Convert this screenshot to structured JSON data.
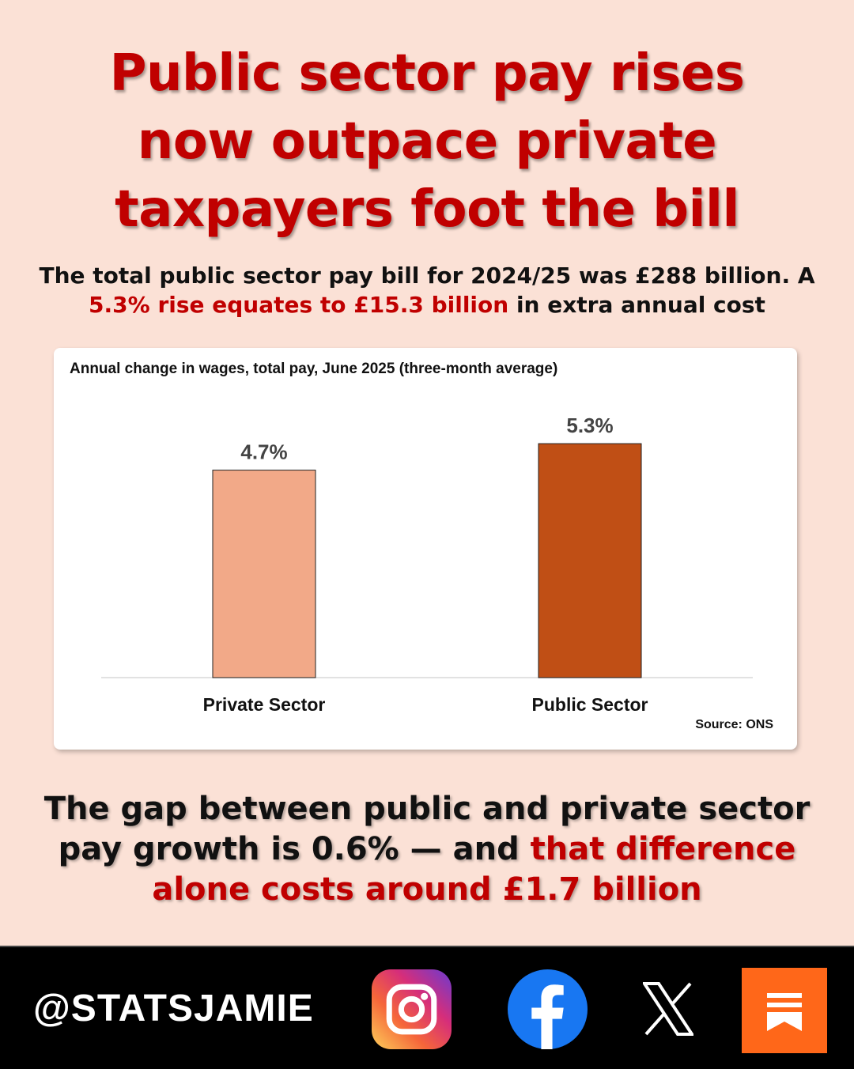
{
  "headline": {
    "line1": "Public sector pay rises",
    "line2": "now outpace private",
    "line3": "taxpayers foot the bill"
  },
  "subline": {
    "part1": "The total public sector pay bill for 2024/25 was £288 billion. A",
    "part2_red": "5.3% rise equates to £15.3 billion",
    "part3": " in extra annual cost"
  },
  "chart_data": {
    "type": "bar",
    "title": "Annual change in wages, total pay, June 2025 (three-month average)",
    "categories": [
      "Private Sector",
      "Public Sector"
    ],
    "values": [
      4.7,
      5.3
    ],
    "value_labels": [
      "4.7%",
      "5.3%"
    ],
    "colors": [
      "#f2a988",
      "#c04f15"
    ],
    "ylim": [
      0,
      6
    ],
    "grid": false,
    "source": "Source: ONS"
  },
  "bottom": {
    "line1": "The gap between public and private sector",
    "line2_black": "pay growth is 0.6% — and ",
    "line2_red": "that difference",
    "line3_red": "alone costs around £1.7 billion"
  },
  "footer": {
    "handle": "@STATSJAMIE",
    "icons": [
      "instagram-icon",
      "facebook-icon",
      "x-icon",
      "substack-icon"
    ]
  },
  "colors": {
    "background": "#fbe1d6",
    "accent_red": "#c00000",
    "footer": "#000000"
  }
}
